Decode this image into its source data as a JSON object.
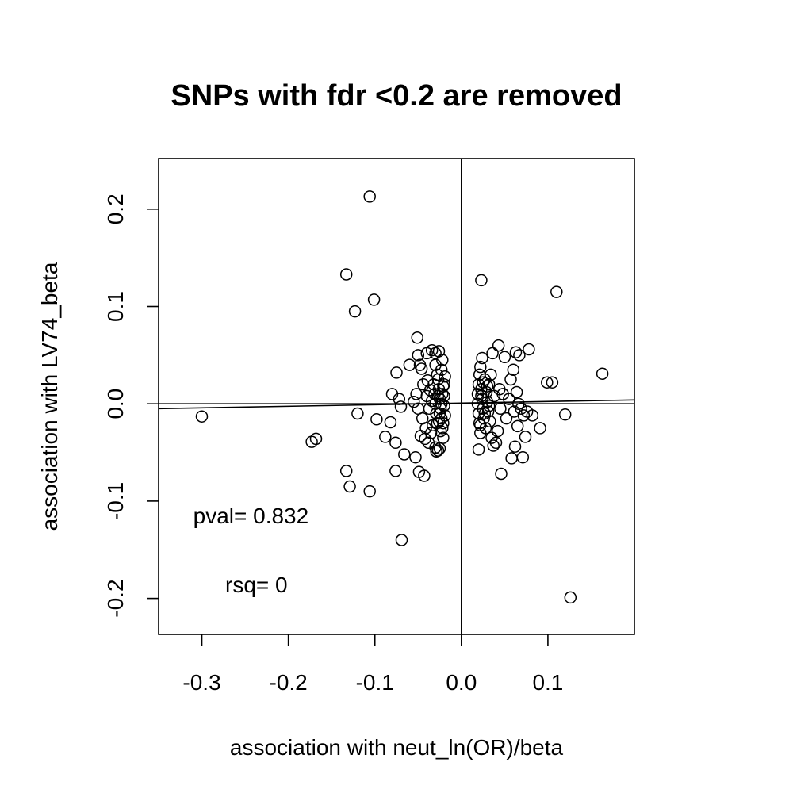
{
  "chart_data": {
    "type": "scatter",
    "title": "SNPs with fdr <0.2 are removed",
    "xlabel": "association with neut_ln(OR)/beta",
    "ylabel": "association with LV74_beta",
    "xlim": [
      -0.35,
      0.2
    ],
    "ylim": [
      -0.237,
      0.252
    ],
    "x_ticks": [
      -0.3,
      -0.2,
      -0.1,
      0.0,
      0.1
    ],
    "x_tick_labels": [
      "-0.3",
      "-0.2",
      "-0.1",
      "0.0",
      "0.1"
    ],
    "y_ticks": [
      -0.2,
      -0.1,
      0.0,
      0.1,
      0.2
    ],
    "y_tick_labels": [
      "-0.2",
      "-0.1",
      "0.0",
      "0.1",
      "0.2"
    ],
    "reference_lines": {
      "vertical_x": 0,
      "horizontal_y": 0
    },
    "regression_line": {
      "x": [
        -0.35,
        0.2
      ],
      "y": [
        -0.005,
        0.004
      ]
    },
    "annotations": [
      {
        "text": "pval= 0.832",
        "x": -0.31,
        "y": -0.123
      },
      {
        "text": "rsq= 0",
        "x": -0.273,
        "y": -0.194
      }
    ],
    "points": [
      {
        "x": -0.106,
        "y": 0.213
      },
      {
        "x": -0.133,
        "y": 0.133
      },
      {
        "x": -0.101,
        "y": 0.107
      },
      {
        "x": -0.123,
        "y": 0.095
      },
      {
        "x": 0.023,
        "y": 0.127
      },
      {
        "x": 0.11,
        "y": 0.115
      },
      {
        "x": 0.163,
        "y": 0.031
      },
      {
        "x": -0.3,
        "y": -0.013
      },
      {
        "x": -0.173,
        "y": -0.039
      },
      {
        "x": -0.168,
        "y": -0.036
      },
      {
        "x": -0.12,
        "y": -0.01
      },
      {
        "x": -0.098,
        "y": -0.016
      },
      {
        "x": -0.088,
        "y": -0.034
      },
      {
        "x": -0.082,
        "y": -0.019
      },
      {
        "x": -0.076,
        "y": -0.04
      },
      {
        "x": -0.075,
        "y": 0.032
      },
      {
        "x": -0.08,
        "y": 0.01
      },
      {
        "x": -0.072,
        "y": 0.005
      },
      {
        "x": -0.07,
        "y": -0.003
      },
      {
        "x": -0.066,
        "y": -0.052
      },
      {
        "x": -0.076,
        "y": -0.069
      },
      {
        "x": -0.133,
        "y": -0.069
      },
      {
        "x": -0.129,
        "y": -0.085
      },
      {
        "x": -0.106,
        "y": -0.09
      },
      {
        "x": -0.069,
        "y": -0.14
      },
      {
        "x": -0.053,
        "y": -0.055
      },
      {
        "x": -0.049,
        "y": -0.07
      },
      {
        "x": -0.043,
        "y": -0.074
      },
      {
        "x": -0.06,
        "y": 0.04
      },
      {
        "x": -0.051,
        "y": 0.068
      },
      {
        "x": -0.05,
        "y": 0.05
      },
      {
        "x": -0.048,
        "y": 0.04
      },
      {
        "x": -0.046,
        "y": 0.036
      },
      {
        "x": -0.04,
        "y": 0.052
      },
      {
        "x": -0.034,
        "y": 0.055
      },
      {
        "x": -0.03,
        "y": 0.052
      },
      {
        "x": -0.026,
        "y": 0.054
      },
      {
        "x": -0.022,
        "y": 0.045
      },
      {
        "x": -0.044,
        "y": 0.02
      },
      {
        "x": -0.04,
        "y": 0.008
      },
      {
        "x": -0.037,
        "y": -0.005
      },
      {
        "x": -0.045,
        "y": -0.015
      },
      {
        "x": -0.05,
        "y": -0.005
      },
      {
        "x": -0.055,
        "y": 0.002
      },
      {
        "x": -0.052,
        "y": 0.01
      },
      {
        "x": -0.047,
        "y": -0.033
      },
      {
        "x": -0.042,
        "y": -0.036
      },
      {
        "x": -0.038,
        "y": -0.04
      },
      {
        "x": -0.035,
        "y": -0.03
      },
      {
        "x": -0.03,
        "y": 0.04
      },
      {
        "x": -0.028,
        "y": 0.03
      },
      {
        "x": -0.03,
        "y": -0.045
      },
      {
        "x": -0.029,
        "y": -0.049
      },
      {
        "x": -0.027,
        "y": -0.048
      },
      {
        "x": -0.025,
        "y": -0.046
      },
      {
        "x": -0.032,
        "y": 0.02
      },
      {
        "x": -0.031,
        "y": 0.01
      },
      {
        "x": -0.03,
        "y": 0.0
      },
      {
        "x": -0.029,
        "y": -0.01
      },
      {
        "x": -0.028,
        "y": -0.02
      },
      {
        "x": -0.027,
        "y": 0.025
      },
      {
        "x": -0.026,
        "y": 0.015
      },
      {
        "x": -0.025,
        "y": 0.005
      },
      {
        "x": -0.024,
        "y": -0.005
      },
      {
        "x": -0.023,
        "y": -0.015
      },
      {
        "x": -0.022,
        "y": -0.025
      },
      {
        "x": -0.021,
        "y": 0.018
      },
      {
        "x": -0.02,
        "y": 0.008
      },
      {
        "x": -0.02,
        "y": -0.002
      },
      {
        "x": -0.019,
        "y": -0.012
      },
      {
        "x": -0.019,
        "y": 0.028
      },
      {
        "x": -0.021,
        "y": -0.035
      },
      {
        "x": -0.023,
        "y": 0.035
      },
      {
        "x": -0.024,
        "y": -0.028
      },
      {
        "x": -0.026,
        "y": -0.018
      },
      {
        "x": -0.033,
        "y": -0.022
      },
      {
        "x": -0.036,
        "y": 0.014
      },
      {
        "x": -0.039,
        "y": 0.024
      },
      {
        "x": -0.041,
        "y": -0.025
      },
      {
        "x": -0.034,
        "y": 0.003
      },
      {
        "x": 0.02,
        "y": -0.047
      },
      {
        "x": 0.022,
        "y": 0.038
      },
      {
        "x": 0.024,
        "y": 0.047
      },
      {
        "x": 0.021,
        "y": 0.03
      },
      {
        "x": 0.02,
        "y": 0.02
      },
      {
        "x": 0.019,
        "y": 0.01
      },
      {
        "x": 0.019,
        "y": 0.0
      },
      {
        "x": 0.02,
        "y": -0.01
      },
      {
        "x": 0.021,
        "y": -0.02
      },
      {
        "x": 0.022,
        "y": -0.03
      },
      {
        "x": 0.023,
        "y": 0.015
      },
      {
        "x": 0.024,
        "y": 0.005
      },
      {
        "x": 0.025,
        "y": -0.005
      },
      {
        "x": 0.026,
        "y": -0.015
      },
      {
        "x": 0.027,
        "y": 0.025
      },
      {
        "x": 0.028,
        "y": -0.025
      },
      {
        "x": 0.029,
        "y": 0.012
      },
      {
        "x": 0.03,
        "y": 0.002
      },
      {
        "x": 0.031,
        "y": -0.008
      },
      {
        "x": 0.032,
        "y": 0.02
      },
      {
        "x": 0.033,
        "y": -0.018
      },
      {
        "x": 0.034,
        "y": 0.03
      },
      {
        "x": 0.035,
        "y": -0.035
      },
      {
        "x": 0.036,
        "y": 0.052
      },
      {
        "x": 0.037,
        "y": -0.043
      },
      {
        "x": 0.038,
        "y": 0.008
      },
      {
        "x": 0.04,
        "y": -0.04
      },
      {
        "x": 0.042,
        "y": -0.028
      },
      {
        "x": 0.043,
        "y": 0.06
      },
      {
        "x": 0.044,
        "y": 0.015
      },
      {
        "x": 0.045,
        "y": -0.005
      },
      {
        "x": 0.046,
        "y": -0.072
      },
      {
        "x": 0.048,
        "y": 0.01
      },
      {
        "x": 0.05,
        "y": 0.048
      },
      {
        "x": 0.052,
        "y": -0.015
      },
      {
        "x": 0.055,
        "y": 0.005
      },
      {
        "x": 0.057,
        "y": 0.025
      },
      {
        "x": 0.058,
        "y": -0.056
      },
      {
        "x": 0.06,
        "y": 0.035
      },
      {
        "x": 0.061,
        "y": -0.008
      },
      {
        "x": 0.062,
        "y": -0.044
      },
      {
        "x": 0.063,
        "y": 0.053
      },
      {
        "x": 0.064,
        "y": 0.012
      },
      {
        "x": 0.065,
        "y": -0.023
      },
      {
        "x": 0.066,
        "y": 0.0
      },
      {
        "x": 0.067,
        "y": 0.05
      },
      {
        "x": 0.069,
        "y": -0.005
      },
      {
        "x": 0.071,
        "y": -0.055
      },
      {
        "x": 0.072,
        "y": -0.012
      },
      {
        "x": 0.074,
        "y": -0.034
      },
      {
        "x": 0.076,
        "y": -0.008
      },
      {
        "x": 0.078,
        "y": 0.056
      },
      {
        "x": 0.082,
        "y": -0.012
      },
      {
        "x": 0.091,
        "y": -0.025
      },
      {
        "x": 0.099,
        "y": 0.022
      },
      {
        "x": 0.105,
        "y": 0.022
      },
      {
        "x": 0.12,
        "y": -0.011
      },
      {
        "x": 0.126,
        "y": -0.199
      },
      {
        "x": 0.025,
        "y": 0.022
      },
      {
        "x": 0.027,
        "y": -0.01
      },
      {
        "x": 0.03,
        "y": 0.018
      },
      {
        "x": 0.032,
        "y": -0.002
      },
      {
        "x": 0.023,
        "y": 0.008
      },
      {
        "x": 0.022,
        "y": -0.022
      },
      {
        "x": -0.022,
        "y": 0.01
      },
      {
        "x": -0.025,
        "y": -0.01
      },
      {
        "x": -0.027,
        "y": 0.008
      },
      {
        "x": -0.023,
        "y": 0.0
      },
      {
        "x": -0.02,
        "y": 0.02
      },
      {
        "x": -0.021,
        "y": -0.02
      }
    ]
  }
}
